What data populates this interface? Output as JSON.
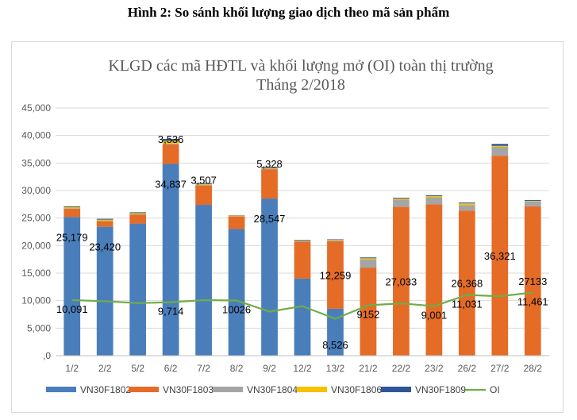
{
  "figure_caption": "Hình 2: So sánh khối lượng giao dịch theo mã sản phẩm",
  "chart_data": {
    "type": "bar",
    "stacked": true,
    "title": "KLGD các mã HĐTL và khối lượng mở (OI) toàn thị trường",
    "subtitle": "Tháng 2/2018",
    "categories": [
      "1/2",
      "2/2",
      "5/2",
      "6/2",
      "7/2",
      "8/2",
      "9/2",
      "12/2",
      "13/2",
      "21/2",
      "22/2",
      "23/2",
      "26/2",
      "27/2",
      "28/2"
    ],
    "ylim": [
      0,
      45000
    ],
    "yticks": [
      0,
      5000,
      10000,
      15000,
      20000,
      25000,
      30000,
      35000,
      40000,
      45000
    ],
    "ytick_labels": [
      ",0",
      "5,000",
      "10,000",
      "15,000",
      "20,000",
      "25,000",
      "30,000",
      "35,000",
      "40,000",
      "45,000"
    ],
    "grid": true,
    "legend_position": "bottom",
    "series": [
      {
        "name": "VN30F1802",
        "kind": "bar",
        "color": "#4a7ebb",
        "values": [
          25179,
          23420,
          24000,
          34837,
          27400,
          23000,
          28547,
          14000,
          8526,
          0,
          0,
          0,
          0,
          0,
          0
        ]
      },
      {
        "name": "VN30F1803",
        "kind": "bar",
        "color": "#e46c27",
        "values": [
          1500,
          1000,
          1600,
          3536,
          3507,
          2300,
          5328,
          6700,
          12259,
          16000,
          27033,
          27500,
          26368,
          36321,
          27133
        ]
      },
      {
        "name": "VN30F1804",
        "kind": "bar",
        "color": "#a5a5a5",
        "values": [
          100,
          100,
          100,
          150,
          150,
          50,
          200,
          150,
          150,
          1500,
          1300,
          1300,
          1000,
          1600,
          900
        ]
      },
      {
        "name": "VN30F1806",
        "kind": "bar",
        "color": "#f5c100",
        "values": [
          200,
          200,
          200,
          500,
          150,
          100,
          100,
          100,
          100,
          200,
          200,
          200,
          300,
          200,
          100
        ]
      },
      {
        "name": "VN30F1809",
        "kind": "bar",
        "color": "#2e5597",
        "values": [
          150,
          150,
          150,
          350,
          150,
          50,
          150,
          100,
          100,
          150,
          150,
          150,
          150,
          350,
          150
        ]
      },
      {
        "name": "OI",
        "kind": "line",
        "color": "#70ad47",
        "values": [
          10091,
          9900,
          9550,
          9714,
          10100,
          10026,
          8000,
          9000,
          6700,
          9152,
          9500,
          9001,
          11031,
          10800,
          11461
        ]
      }
    ],
    "data_labels": [
      {
        "series": "VN30F1802",
        "index": 0,
        "text": "25,179"
      },
      {
        "series": "VN30F1802",
        "index": 1,
        "text": "23,420"
      },
      {
        "series": "VN30F1802",
        "index": 3,
        "text": "34,837"
      },
      {
        "series": "VN30F1802",
        "index": 6,
        "text": "28,547"
      },
      {
        "series": "VN30F1802",
        "index": 8,
        "text": "8,526"
      },
      {
        "series": "VN30F1803",
        "index": 3,
        "text": "3,536"
      },
      {
        "series": "VN30F1803",
        "index": 4,
        "text": "3,507"
      },
      {
        "series": "VN30F1803",
        "index": 6,
        "text": "5,328"
      },
      {
        "series": "VN30F1803",
        "index": 8,
        "text": "12,259"
      },
      {
        "series": "VN30F1803",
        "index": 10,
        "text": "27,033"
      },
      {
        "series": "VN30F1803",
        "index": 12,
        "text": "26,368"
      },
      {
        "series": "VN30F1803",
        "index": 13,
        "text": "36,321"
      },
      {
        "series": "VN30F1803",
        "index": 14,
        "text": "27133"
      },
      {
        "series": "OI",
        "index": 0,
        "text": "10,091"
      },
      {
        "series": "OI",
        "index": 3,
        "text": "9,714"
      },
      {
        "series": "OI",
        "index": 5,
        "text": "10026"
      },
      {
        "series": "OI",
        "index": 9,
        "text": "9152"
      },
      {
        "series": "OI",
        "index": 11,
        "text": "9,001"
      },
      {
        "series": "OI",
        "index": 12,
        "text": "11,031"
      },
      {
        "series": "OI",
        "index": 14,
        "text": "11,461"
      }
    ]
  }
}
